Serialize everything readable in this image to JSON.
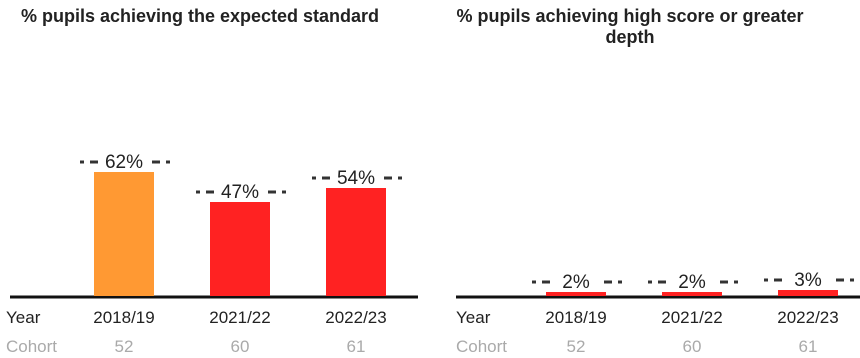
{
  "row_labels": {
    "year": "Year",
    "cohort": "Cohort"
  },
  "colors": {
    "previous": "#ff9933",
    "current": "#ff2222",
    "axis": "#111111",
    "text": "#222222",
    "cohort_text": "#aaaaaa",
    "marker": "#333333"
  },
  "chart_data": [
    {
      "type": "bar",
      "title": "% pupils achieving the expected standard",
      "categories": [
        "2018/19",
        "2021/22",
        "2022/23"
      ],
      "values": [
        62,
        47,
        54
      ],
      "labels": [
        "62%",
        "47%",
        "54%"
      ],
      "cohorts": [
        "52",
        "60",
        "61"
      ],
      "bar_colors": [
        "#ff9933",
        "#ff2222",
        "#ff2222"
      ],
      "ylim": [
        0,
        100
      ]
    },
    {
      "type": "bar",
      "title": "% pupils achieving high score or greater depth",
      "categories": [
        "2018/19",
        "2021/22",
        "2022/23"
      ],
      "values": [
        2,
        2,
        3
      ],
      "labels": [
        "2%",
        "2%",
        "3%"
      ],
      "cohorts": [
        "52",
        "60",
        "61"
      ],
      "bar_colors": [
        "#ff2222",
        "#ff2222",
        "#ff2222"
      ],
      "ylim": [
        0,
        100
      ]
    }
  ]
}
